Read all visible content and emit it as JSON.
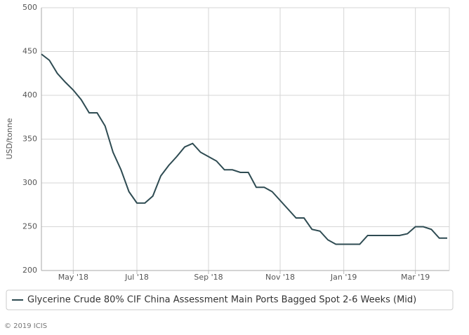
{
  "chart_data": {
    "type": "line",
    "y_label": "USD/tonne",
    "categories": [
      null,
      null,
      null,
      null,
      "May '18",
      null,
      null,
      null,
      null,
      null,
      null,
      null,
      "Jul '18",
      null,
      null,
      null,
      null,
      null,
      null,
      null,
      null,
      "Sep '18",
      null,
      null,
      null,
      null,
      null,
      null,
      null,
      null,
      "Nov '18",
      null,
      null,
      null,
      null,
      null,
      null,
      null,
      "Jan '19",
      null,
      null,
      null,
      null,
      null,
      null,
      null,
      null,
      "Mar '19",
      null,
      null,
      null,
      null
    ],
    "series": [
      {
        "name": "Glycerine Crude 80% CIF China Assessment Main Ports Bagged Spot 2-6 Weeks (Mid)",
        "color": "#2e4b52",
        "values": [
          447,
          440,
          425,
          415,
          406,
          395,
          380,
          380,
          365,
          335,
          315,
          290,
          277,
          277,
          285,
          308,
          320,
          330,
          341,
          345,
          335,
          330,
          325,
          315,
          315,
          312,
          312,
          295,
          295,
          290,
          280,
          270,
          260,
          260,
          247,
          245,
          235,
          230,
          230,
          230,
          230,
          240,
          240,
          240,
          240,
          240,
          242,
          250,
          250,
          247,
          237,
          237
        ]
      }
    ],
    "ylim": [
      200,
      500
    ],
    "yticks": [
      200,
      250,
      300,
      350,
      400,
      450,
      500
    ],
    "grid": true,
    "footer": "© 2019 ICIS"
  }
}
